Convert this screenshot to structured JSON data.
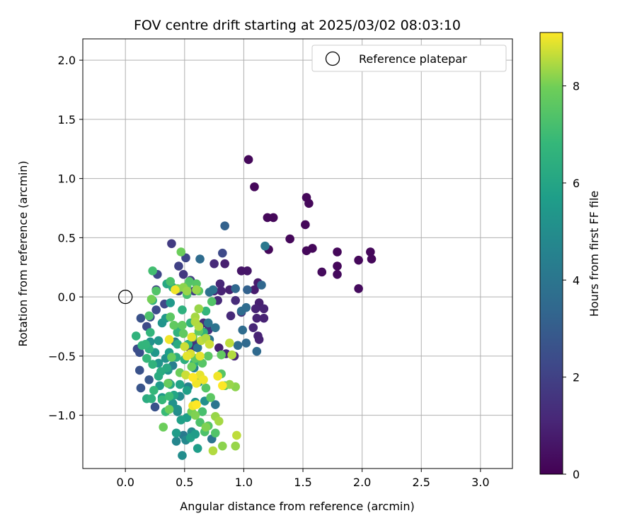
{
  "chart_data": {
    "type": "scatter",
    "title": "FOV centre drift starting at 2025/03/02 08:03:10",
    "xlabel": "Angular distance from reference (arcmin)",
    "ylabel": "Rotation from reference (arcmin)",
    "xlim": [
      -0.36,
      3.27
    ],
    "ylim": [
      -1.45,
      2.18
    ],
    "xticks": [
      0.0,
      0.5,
      1.0,
      1.5,
      2.0,
      2.5,
      3.0
    ],
    "xtick_labels": [
      "0.0",
      "0.5",
      "1.0",
      "1.5",
      "2.0",
      "2.5",
      "3.0"
    ],
    "yticks": [
      -1.0,
      -0.5,
      0.0,
      0.5,
      1.0,
      1.5,
      2.0
    ],
    "ytick_labels": [
      "−1.0",
      "−0.5",
      "0.0",
      "0.5",
      "1.0",
      "1.5",
      "2.0"
    ],
    "grid": true,
    "colormap": "viridis",
    "colorbar": {
      "label": "Hours from first FF file",
      "min": 0,
      "max": 9.1,
      "ticks": [
        0,
        2,
        4,
        6,
        8
      ],
      "tick_labels": [
        "0",
        "2",
        "4",
        "6",
        "8"
      ]
    },
    "legend": {
      "position": "upper right",
      "entries": [
        {
          "label": "Reference platepar",
          "marker": "open-circle",
          "color": "#000000"
        }
      ]
    },
    "reference_point": {
      "x": 0.0,
      "y": 0.0
    },
    "points": [
      [
        1.04,
        1.16,
        0.2
      ],
      [
        1.09,
        0.93,
        0.2
      ],
      [
        1.53,
        0.84,
        0.2
      ],
      [
        1.55,
        0.79,
        0.2
      ],
      [
        1.2,
        0.67,
        0.2
      ],
      [
        1.25,
        0.67,
        0.2
      ],
      [
        1.52,
        0.61,
        0.2
      ],
      [
        1.39,
        0.49,
        0.2
      ],
      [
        1.21,
        0.4,
        0.2
      ],
      [
        1.53,
        0.39,
        0.2
      ],
      [
        1.58,
        0.41,
        0.2
      ],
      [
        1.79,
        0.38,
        0.2
      ],
      [
        2.07,
        0.38,
        0.2
      ],
      [
        1.97,
        0.31,
        0.2
      ],
      [
        2.08,
        0.32,
        0.2
      ],
      [
        1.79,
        0.26,
        0.2
      ],
      [
        1.66,
        0.21,
        0.3
      ],
      [
        1.79,
        0.19,
        0.3
      ],
      [
        1.97,
        0.07,
        0.3
      ],
      [
        0.98,
        0.22,
        0.6
      ],
      [
        1.03,
        0.22,
        0.6
      ],
      [
        0.84,
        0.28,
        0.9
      ],
      [
        0.75,
        0.28,
        1.2
      ],
      [
        0.8,
        0.11,
        1.1
      ],
      [
        1.12,
        0.12,
        0.8
      ],
      [
        1.09,
        0.06,
        0.8
      ],
      [
        0.88,
        0.06,
        0.9
      ],
      [
        0.81,
        0.05,
        1.0
      ],
      [
        0.75,
        0.05,
        1.1
      ],
      [
        1.13,
        -0.05,
        0.9
      ],
      [
        1.1,
        -0.1,
        1.0
      ],
      [
        1.17,
        -0.1,
        1.0
      ],
      [
        1.17,
        -0.18,
        1.0
      ],
      [
        1.11,
        -0.18,
        1.0
      ],
      [
        1.08,
        -0.26,
        1.1
      ],
      [
        1.12,
        -0.33,
        1.0
      ],
      [
        1.13,
        -0.36,
        1.0
      ],
      [
        0.78,
        -0.03,
        1.2
      ],
      [
        0.93,
        -0.03,
        1.3
      ],
      [
        0.89,
        -0.16,
        1.2
      ],
      [
        0.98,
        -0.13,
        1.3
      ],
      [
        0.79,
        -0.43,
        0.9
      ],
      [
        0.85,
        -0.48,
        1.1
      ],
      [
        0.92,
        -0.5,
        1.1
      ],
      [
        0.66,
        -0.22,
        1.3
      ],
      [
        0.7,
        -0.28,
        1.5
      ],
      [
        0.58,
        -0.38,
        1.5
      ],
      [
        0.55,
        -0.44,
        1.2
      ],
      [
        0.63,
        -0.28,
        1.3
      ],
      [
        0.39,
        0.45,
        1.8
      ],
      [
        0.45,
        0.26,
        2.0
      ],
      [
        0.51,
        0.33,
        2.2
      ],
      [
        0.49,
        0.19,
        1.7
      ],
      [
        0.55,
        0.14,
        1.8
      ],
      [
        0.58,
        0.05,
        1.9
      ],
      [
        0.45,
        0.05,
        2.0
      ],
      [
        0.27,
        0.19,
        2.2
      ],
      [
        0.26,
        0.06,
        2.1
      ],
      [
        0.33,
        -0.06,
        2.2
      ],
      [
        0.26,
        -0.11,
        2.4
      ],
      [
        0.21,
        -0.17,
        2.5
      ],
      [
        0.13,
        -0.18,
        2.6
      ],
      [
        0.18,
        -0.25,
        2.3
      ],
      [
        0.1,
        -0.44,
        2.4
      ],
      [
        0.12,
        -0.47,
        2.5
      ],
      [
        0.12,
        -0.62,
        2.6
      ],
      [
        0.13,
        -0.77,
        2.7
      ],
      [
        0.2,
        -0.7,
        2.8
      ],
      [
        0.25,
        -0.93,
        2.6
      ],
      [
        0.37,
        -0.73,
        2.7
      ],
      [
        0.82,
        0.37,
        2.3
      ],
      [
        1.03,
        0.06,
        3.2
      ],
      [
        0.93,
        0.07,
        3.4
      ],
      [
        1.15,
        0.1,
        3.4
      ],
      [
        0.98,
        -0.12,
        3.6
      ],
      [
        1.02,
        -0.09,
        3.6
      ],
      [
        0.99,
        -0.28,
        3.6
      ],
      [
        1.02,
        -0.39,
        3.5
      ],
      [
        1.11,
        -0.46,
        3.5
      ],
      [
        0.95,
        -0.41,
        3.6
      ],
      [
        0.84,
        0.6,
        3.2
      ],
      [
        0.63,
        0.32,
        3.6
      ],
      [
        0.71,
        0.04,
        3.8
      ],
      [
        0.74,
        0.06,
        3.9
      ],
      [
        0.7,
        -0.22,
        4.0
      ],
      [
        0.76,
        -0.26,
        3.9
      ],
      [
        0.71,
        -0.36,
        4.0
      ],
      [
        0.61,
        -0.43,
        4.0
      ],
      [
        0.76,
        -0.91,
        4.0
      ],
      [
        0.73,
        -1.2,
        4.0
      ],
      [
        0.49,
        -1.17,
        4.2
      ],
      [
        1.18,
        0.43,
        4.1
      ],
      [
        0.42,
        -0.38,
        4.3
      ],
      [
        0.4,
        -0.58,
        4.4
      ],
      [
        0.58,
        -0.6,
        4.5
      ],
      [
        0.53,
        -0.76,
        4.5
      ],
      [
        0.43,
        -1.22,
        4.7
      ],
      [
        0.51,
        -1.21,
        4.8
      ],
      [
        0.48,
        -1.34,
        5.0
      ],
      [
        0.56,
        -1.14,
        4.9
      ],
      [
        0.44,
        -0.97,
        4.9
      ],
      [
        0.46,
        -0.84,
        4.9
      ],
      [
        0.44,
        -0.95,
        5.1
      ],
      [
        0.4,
        -0.9,
        5.2
      ],
      [
        0.59,
        -0.89,
        5.3
      ],
      [
        0.67,
        -0.88,
        5.1
      ],
      [
        0.62,
        -0.72,
        5.2
      ],
      [
        0.36,
        -0.62,
        5.3
      ],
      [
        0.34,
        -0.52,
        5.1
      ],
      [
        0.28,
        -0.56,
        5.3
      ],
      [
        0.28,
        -0.37,
        5.4
      ],
      [
        0.21,
        -0.38,
        5.2
      ],
      [
        0.31,
        -0.22,
        5.3
      ],
      [
        0.25,
        -0.47,
        5.4
      ],
      [
        0.29,
        -0.75,
        5.6
      ],
      [
        0.31,
        -0.85,
        5.5
      ],
      [
        0.37,
        -0.47,
        5.7
      ],
      [
        0.43,
        -1.15,
        5.6
      ],
      [
        0.55,
        -1.19,
        5.8
      ],
      [
        0.61,
        -1.28,
        5.7
      ],
      [
        0.59,
        -1.16,
        5.6
      ],
      [
        0.52,
        -1.02,
        5.7
      ],
      [
        0.47,
        -1.04,
        5.8
      ],
      [
        0.52,
        -0.79,
        5.8
      ],
      [
        0.46,
        -0.74,
        5.9
      ],
      [
        0.41,
        -0.83,
        6.0
      ],
      [
        0.38,
        -0.74,
        6.1
      ],
      [
        0.35,
        -0.6,
        6.2
      ],
      [
        0.3,
        -0.63,
        6.3
      ],
      [
        0.28,
        -0.67,
        6.3
      ],
      [
        0.34,
        -0.18,
        5.4
      ],
      [
        0.38,
        -0.05,
        5.5
      ],
      [
        0.35,
        0.11,
        6.1
      ],
      [
        0.4,
        0.08,
        6.3
      ],
      [
        0.47,
        -0.25,
        6.2
      ],
      [
        0.44,
        -0.4,
        6.3
      ],
      [
        0.43,
        -0.51,
        6.3
      ],
      [
        0.5,
        -0.53,
        6.4
      ],
      [
        0.58,
        -0.56,
        6.5
      ],
      [
        0.53,
        -0.4,
        6.5
      ],
      [
        0.55,
        -0.22,
        6.6
      ],
      [
        0.48,
        -0.11,
        6.5
      ],
      [
        0.44,
        -0.3,
        6.6
      ],
      [
        0.66,
        -0.3,
        6.7
      ],
      [
        0.68,
        -0.12,
        6.7
      ],
      [
        0.23,
        -0.03,
        6.5
      ],
      [
        0.23,
        -0.57,
        6.6
      ],
      [
        0.2,
        -0.44,
        6.5
      ],
      [
        0.21,
        -0.3,
        6.7
      ],
      [
        0.09,
        -0.33,
        6.6
      ],
      [
        0.14,
        -0.41,
        6.7
      ],
      [
        0.17,
        -0.4,
        6.7
      ],
      [
        0.18,
        -0.52,
        6.8
      ],
      [
        0.18,
        -0.86,
        6.3
      ],
      [
        0.22,
        -0.86,
        6.5
      ],
      [
        0.24,
        -0.79,
        6.8
      ],
      [
        0.31,
        -0.87,
        6.8
      ],
      [
        0.34,
        -0.97,
        6.9
      ],
      [
        0.37,
        -0.84,
        7.0
      ],
      [
        0.65,
        -0.97,
        7.2
      ],
      [
        0.63,
        -1.06,
        7.3
      ],
      [
        0.7,
        -1.09,
        7.5
      ],
      [
        0.67,
        -1.14,
        7.3
      ],
      [
        0.76,
        -1.15,
        7.4
      ],
      [
        0.72,
        -0.85,
        7.6
      ],
      [
        0.68,
        -0.77,
        7.5
      ],
      [
        0.81,
        -0.65,
        7.5
      ],
      [
        0.84,
        -0.75,
        7.6
      ],
      [
        0.65,
        -0.56,
        7.5
      ],
      [
        0.59,
        -0.52,
        7.6
      ],
      [
        0.7,
        -0.5,
        7.6
      ],
      [
        0.81,
        -0.49,
        7.7
      ],
      [
        0.38,
        0.13,
        7.3
      ],
      [
        0.23,
        0.22,
        7.1
      ],
      [
        0.2,
        -0.16,
        7.3
      ],
      [
        0.26,
        0.05,
        7.4
      ],
      [
        0.52,
        0.02,
        7.2
      ],
      [
        0.54,
        0.13,
        7.4
      ],
      [
        0.6,
        0.11,
        7.5
      ],
      [
        0.62,
        0.05,
        7.6
      ],
      [
        0.73,
        -0.04,
        7.4
      ],
      [
        0.52,
        0.09,
        7.5
      ],
      [
        0.47,
        0.38,
        7.9
      ],
      [
        0.38,
        -0.17,
        7.6
      ],
      [
        0.41,
        -0.24,
        7.7
      ],
      [
        0.48,
        -0.24,
        7.7
      ],
      [
        0.49,
        -0.31,
        7.7
      ],
      [
        0.57,
        -0.34,
        7.7
      ],
      [
        0.62,
        -0.29,
        7.7
      ],
      [
        0.39,
        -0.51,
        7.8
      ],
      [
        0.46,
        -0.64,
        7.9
      ],
      [
        0.56,
        -0.59,
        7.9
      ],
      [
        0.36,
        -0.73,
        7.8
      ],
      [
        0.37,
        -0.95,
        7.9
      ],
      [
        0.32,
        -1.1,
        7.9
      ],
      [
        0.56,
        -0.97,
        8.0
      ],
      [
        0.59,
        -1.0,
        8.1
      ],
      [
        0.68,
        -1.1,
        8.1
      ],
      [
        0.82,
        -1.26,
        8.2
      ],
      [
        0.93,
        -1.26,
        8.3
      ],
      [
        0.93,
        -0.76,
        8.2
      ],
      [
        0.88,
        -0.74,
        8.3
      ],
      [
        0.76,
        -1.01,
        8.3
      ],
      [
        0.79,
        -1.05,
        8.4
      ],
      [
        0.74,
        -1.3,
        8.5
      ],
      [
        0.94,
        -1.17,
        8.6
      ],
      [
        0.22,
        -0.02,
        8.0
      ],
      [
        0.44,
        0.07,
        8.1
      ],
      [
        0.49,
        0.08,
        8.2
      ],
      [
        0.52,
        0.05,
        8.3
      ],
      [
        0.6,
        0.06,
        8.3
      ],
      [
        0.62,
        -0.1,
        8.3
      ],
      [
        0.59,
        -0.17,
        8.4
      ],
      [
        0.59,
        -0.21,
        8.5
      ],
      [
        0.62,
        -0.25,
        8.5
      ],
      [
        0.64,
        -0.37,
        8.6
      ],
      [
        0.68,
        -0.35,
        8.5
      ],
      [
        0.71,
        -0.4,
        8.7
      ],
      [
        0.88,
        -0.39,
        8.6
      ],
      [
        0.9,
        -0.49,
        8.5
      ],
      [
        0.5,
        -0.42,
        8.7
      ],
      [
        0.51,
        -0.66,
        8.7
      ],
      [
        0.55,
        -0.48,
        8.8
      ],
      [
        0.52,
        -0.5,
        8.9
      ],
      [
        0.56,
        -0.34,
        8.9
      ],
      [
        0.63,
        -0.5,
        8.9
      ],
      [
        0.63,
        -0.66,
        8.9
      ],
      [
        0.66,
        -0.7,
        9.0
      ],
      [
        0.6,
        -0.73,
        9.0
      ],
      [
        0.57,
        -0.92,
        9.0
      ],
      [
        0.6,
        -0.91,
        9.1
      ],
      [
        0.82,
        -0.75,
        9.1
      ],
      [
        0.78,
        -0.67,
        9.0
      ],
      [
        0.37,
        -0.36,
        9.0
      ],
      [
        0.42,
        0.06,
        9.0
      ],
      [
        0.57,
        -0.68,
        9.1
      ]
    ]
  }
}
